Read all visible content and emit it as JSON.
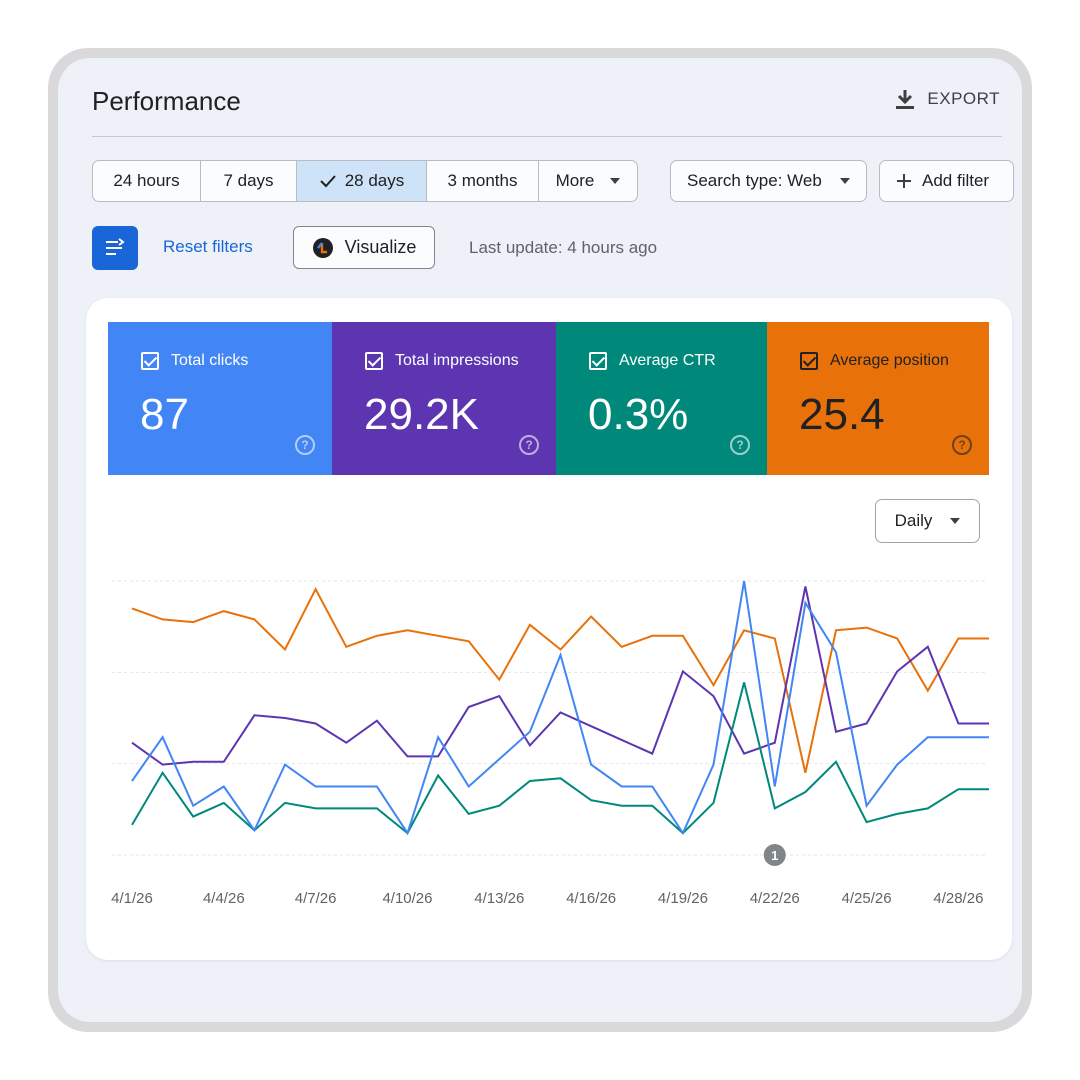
{
  "header": {
    "title": "Performance",
    "export_label": "EXPORT"
  },
  "date_range": {
    "options": [
      "24 hours",
      "7 days",
      "28 days",
      "3 months",
      "More"
    ],
    "selected": "28 days"
  },
  "search_type_label": "Search type: Web",
  "add_filter_label": "Add filter",
  "toolbar": {
    "reset_label": "Reset filters",
    "visualize_label": "Visualize",
    "last_update": "Last update: 4 hours ago"
  },
  "metrics": [
    {
      "label": "Total clicks",
      "value": "87",
      "color": "#4285f4",
      "text_color": "#ffffff"
    },
    {
      "label": "Total impressions",
      "value": "29.2K",
      "color": "#5e35b1",
      "text_color": "#ffffff"
    },
    {
      "label": "Average CTR",
      "value": "0.3%",
      "color": "#00897b",
      "text_color": "#ffffff"
    },
    {
      "label": "Average position",
      "value": "25.4",
      "color": "#e8710a",
      "text_color": "#202124"
    }
  ],
  "granularity": "Daily",
  "annotation_marker": "1",
  "chart_data": {
    "type": "line",
    "x_tick_labels": [
      "4/1/26",
      "4/4/26",
      "4/7/26",
      "4/10/26",
      "4/13/26",
      "4/16/26",
      "4/19/26",
      "4/22/26",
      "4/25/26",
      "4/28/26"
    ],
    "x": [
      "4/1/26",
      "4/2/26",
      "4/3/26",
      "4/4/26",
      "4/5/26",
      "4/6/26",
      "4/7/26",
      "4/8/26",
      "4/9/26",
      "4/10/26",
      "4/11/26",
      "4/12/26",
      "4/13/26",
      "4/14/26",
      "4/15/26",
      "4/16/26",
      "4/17/26",
      "4/18/26",
      "4/19/26",
      "4/20/26",
      "4/21/26",
      "4/22/26",
      "4/23/26",
      "4/24/26",
      "4/25/26",
      "4/26/26",
      "4/27/26",
      "4/28/26",
      "4/29/26"
    ],
    "grid": true,
    "legend": "none",
    "series": [
      {
        "metric": "Total clicks",
        "color": "#4285f4",
        "values": [
          0.27,
          0.43,
          0.18,
          0.25,
          0.09,
          0.33,
          0.25,
          0.25,
          0.25,
          0.08,
          0.43,
          0.25,
          0.35,
          0.45,
          0.73,
          0.33,
          0.25,
          0.25,
          0.08,
          0.33,
          1.0,
          0.25,
          0.92,
          0.74,
          0.18,
          0.33,
          0.43,
          0.43,
          0.43
        ]
      },
      {
        "metric": "Total impressions",
        "color": "#5e35b1",
        "values": [
          0.41,
          0.33,
          0.34,
          0.34,
          0.51,
          0.5,
          0.48,
          0.41,
          0.49,
          0.36,
          0.36,
          0.54,
          0.58,
          0.4,
          0.52,
          0.47,
          0.42,
          0.37,
          0.67,
          0.58,
          0.37,
          0.41,
          0.98,
          0.45,
          0.48,
          0.67,
          0.76,
          0.48,
          0.48
        ]
      },
      {
        "metric": "Average CTR",
        "color": "#00897b",
        "values": [
          0.11,
          0.3,
          0.14,
          0.19,
          0.09,
          0.19,
          0.17,
          0.17,
          0.17,
          0.08,
          0.29,
          0.15,
          0.18,
          0.27,
          0.28,
          0.2,
          0.18,
          0.18,
          0.08,
          0.19,
          0.63,
          0.17,
          0.23,
          0.34,
          0.12,
          0.15,
          0.17,
          0.24,
          0.24
        ]
      },
      {
        "metric": "Average position",
        "color": "#e8710a",
        "values": [
          0.9,
          0.86,
          0.85,
          0.89,
          0.86,
          0.75,
          0.97,
          0.76,
          0.8,
          0.82,
          0.8,
          0.78,
          0.64,
          0.84,
          0.75,
          0.87,
          0.76,
          0.8,
          0.8,
          0.62,
          0.82,
          0.79,
          0.3,
          0.82,
          0.83,
          0.79,
          0.6,
          0.79,
          0.79
        ]
      }
    ]
  }
}
